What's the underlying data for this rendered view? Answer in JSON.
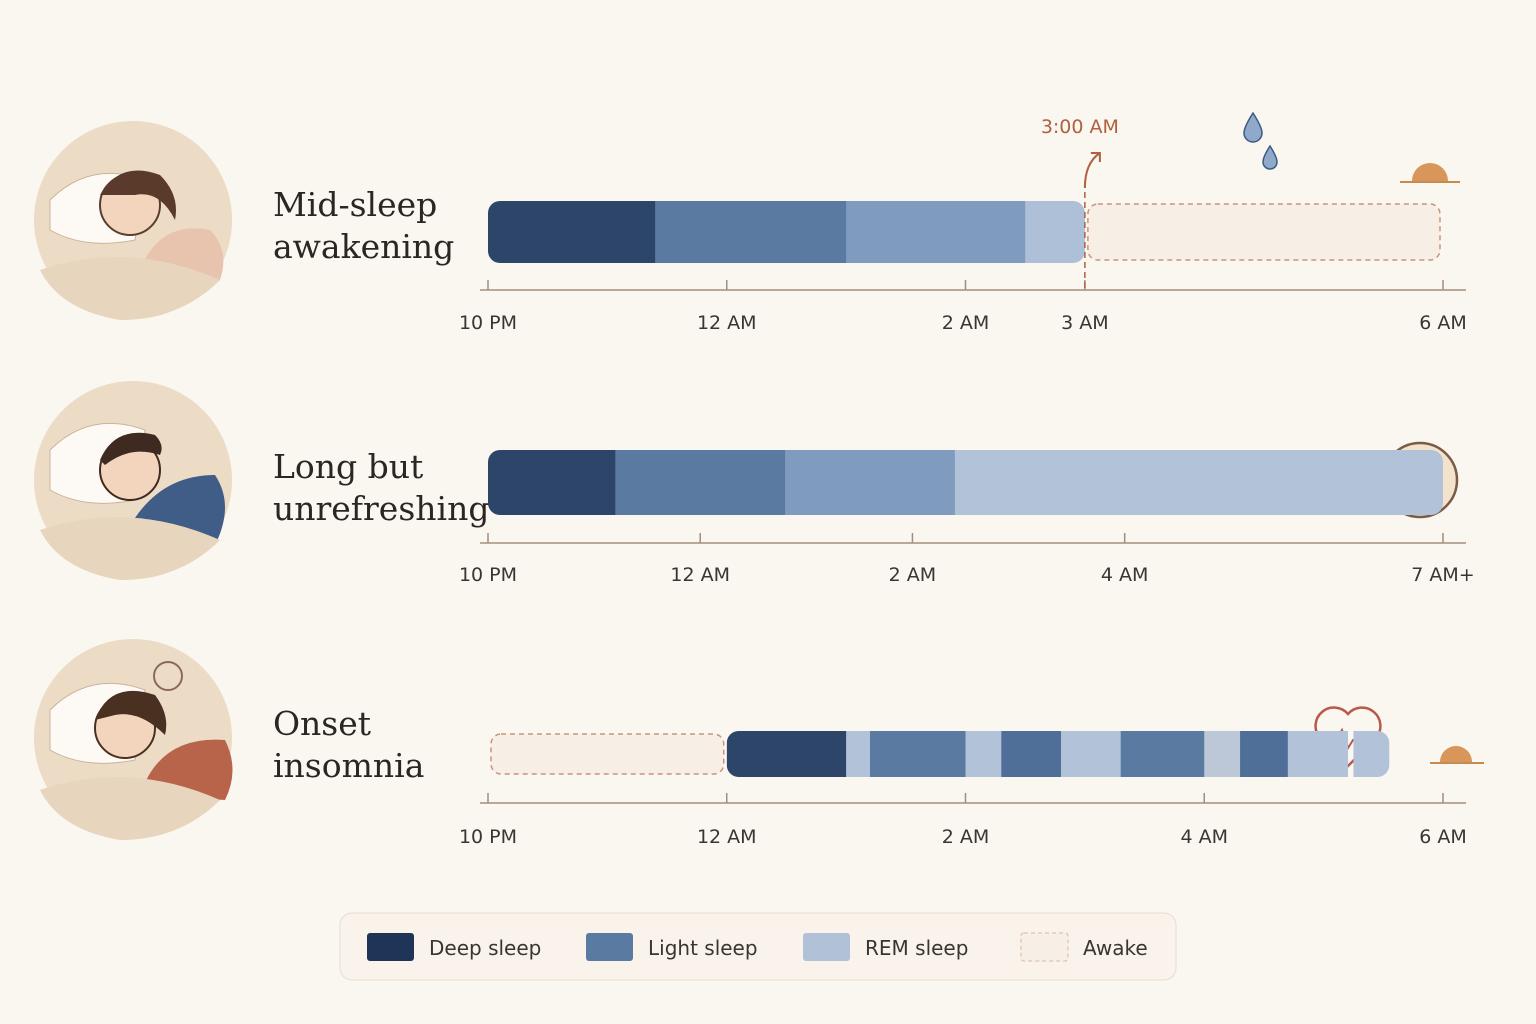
{
  "rows": [
    {
      "title_lines": [
        "Mid-sleep",
        "awakening"
      ],
      "xlim": [
        22,
        30
      ],
      "ticks": [
        {
          "value": 22,
          "label": "10 PM"
        },
        {
          "value": 24,
          "label": "12 AM"
        },
        {
          "value": 26,
          "label": "2 AM"
        },
        {
          "value": 27,
          "label": "3 AM",
          "highlight": true
        },
        {
          "value": 30,
          "label": "6 AM"
        }
      ],
      "segments": [
        {
          "color": "#2d4569",
          "from": 22,
          "to": 23.4
        },
        {
          "color": "#5a7aa1",
          "from": 23.4,
          "to": 25
        },
        {
          "color": "#7f9bbd",
          "from": 25,
          "to": 26.5
        },
        {
          "color": "#adc0d8",
          "from": 26.5,
          "to": 27
        },
        {
          "legend": 3,
          "from": 27,
          "to": 30
        }
      ],
      "annotation": {
        "text": "3:00 AM",
        "at": 27
      }
    },
    {
      "title_lines": [
        "Long but",
        "unrefreshing"
      ],
      "xlim": [
        22,
        31
      ],
      "ticks": [
        {
          "value": 22,
          "label": "10 PM"
        },
        {
          "value": 24,
          "label": "12 AM"
        },
        {
          "value": 26,
          "label": "2 AM"
        },
        {
          "value": 28,
          "label": "4 AM"
        },
        {
          "value": 31,
          "label": "7 AM+",
          "highlight": true
        }
      ],
      "segments": [
        {
          "color": "#2d4569",
          "from": 22,
          "to": 23.2
        },
        {
          "color": "#5a7aa1",
          "from": 23.2,
          "to": 24.8
        },
        {
          "color": "#7f9bbd",
          "from": 24.8,
          "to": 26.4
        },
        {
          "color": "#b2c3d9",
          "from": 26.4,
          "to": 31
        }
      ]
    },
    {
      "title_lines": [
        "Onset",
        "insomnia"
      ],
      "xlim": [
        22,
        30
      ],
      "ticks": [
        {
          "value": 22,
          "label": "10 PM"
        },
        {
          "value": 24,
          "label": "12 AM",
          "highlight": true
        },
        {
          "value": 26,
          "label": "2 AM"
        },
        {
          "value": 28,
          "label": "4 AM"
        },
        {
          "value": 30,
          "label": "6 AM"
        }
      ],
      "segments": [
        {
          "legend": 3,
          "from": 22,
          "to": 24
        },
        {
          "color": "#2d4569",
          "from": 24,
          "to": 25
        },
        {
          "color": "#b2c3d9",
          "from": 25,
          "to": 25.2
        },
        {
          "color": "#5a7aa1",
          "from": 25.2,
          "to": 26
        },
        {
          "color": "#b2c3d9",
          "from": 26,
          "to": 26.3
        },
        {
          "color": "#4f6f98",
          "from": 26.3,
          "to": 26.8
        },
        {
          "color": "#b2c3d9",
          "from": 26.8,
          "to": 27.3
        },
        {
          "color": "#5a7aa1",
          "from": 27.3,
          "to": 28
        },
        {
          "color": "#bcc8d8",
          "from": 28,
          "to": 28.3
        },
        {
          "color": "#4f6f98",
          "from": 28.3,
          "to": 28.7
        },
        {
          "color": "#b2c3d9",
          "from": 28.7,
          "to": 29.2
        },
        {
          "color": "#b2c3d9",
          "from": 29.25,
          "to": 29.55
        }
      ]
    }
  ],
  "legend": [
    {
      "label": "Deep sleep",
      "color": "#1f3557"
    },
    {
      "label": "Light sleep",
      "color": "#5a7aa1"
    },
    {
      "label": "REM sleep",
      "color": "#b0c1d8"
    },
    {
      "label": "Awake",
      "color": "#f7efe6",
      "dashed": true
    }
  ]
}
